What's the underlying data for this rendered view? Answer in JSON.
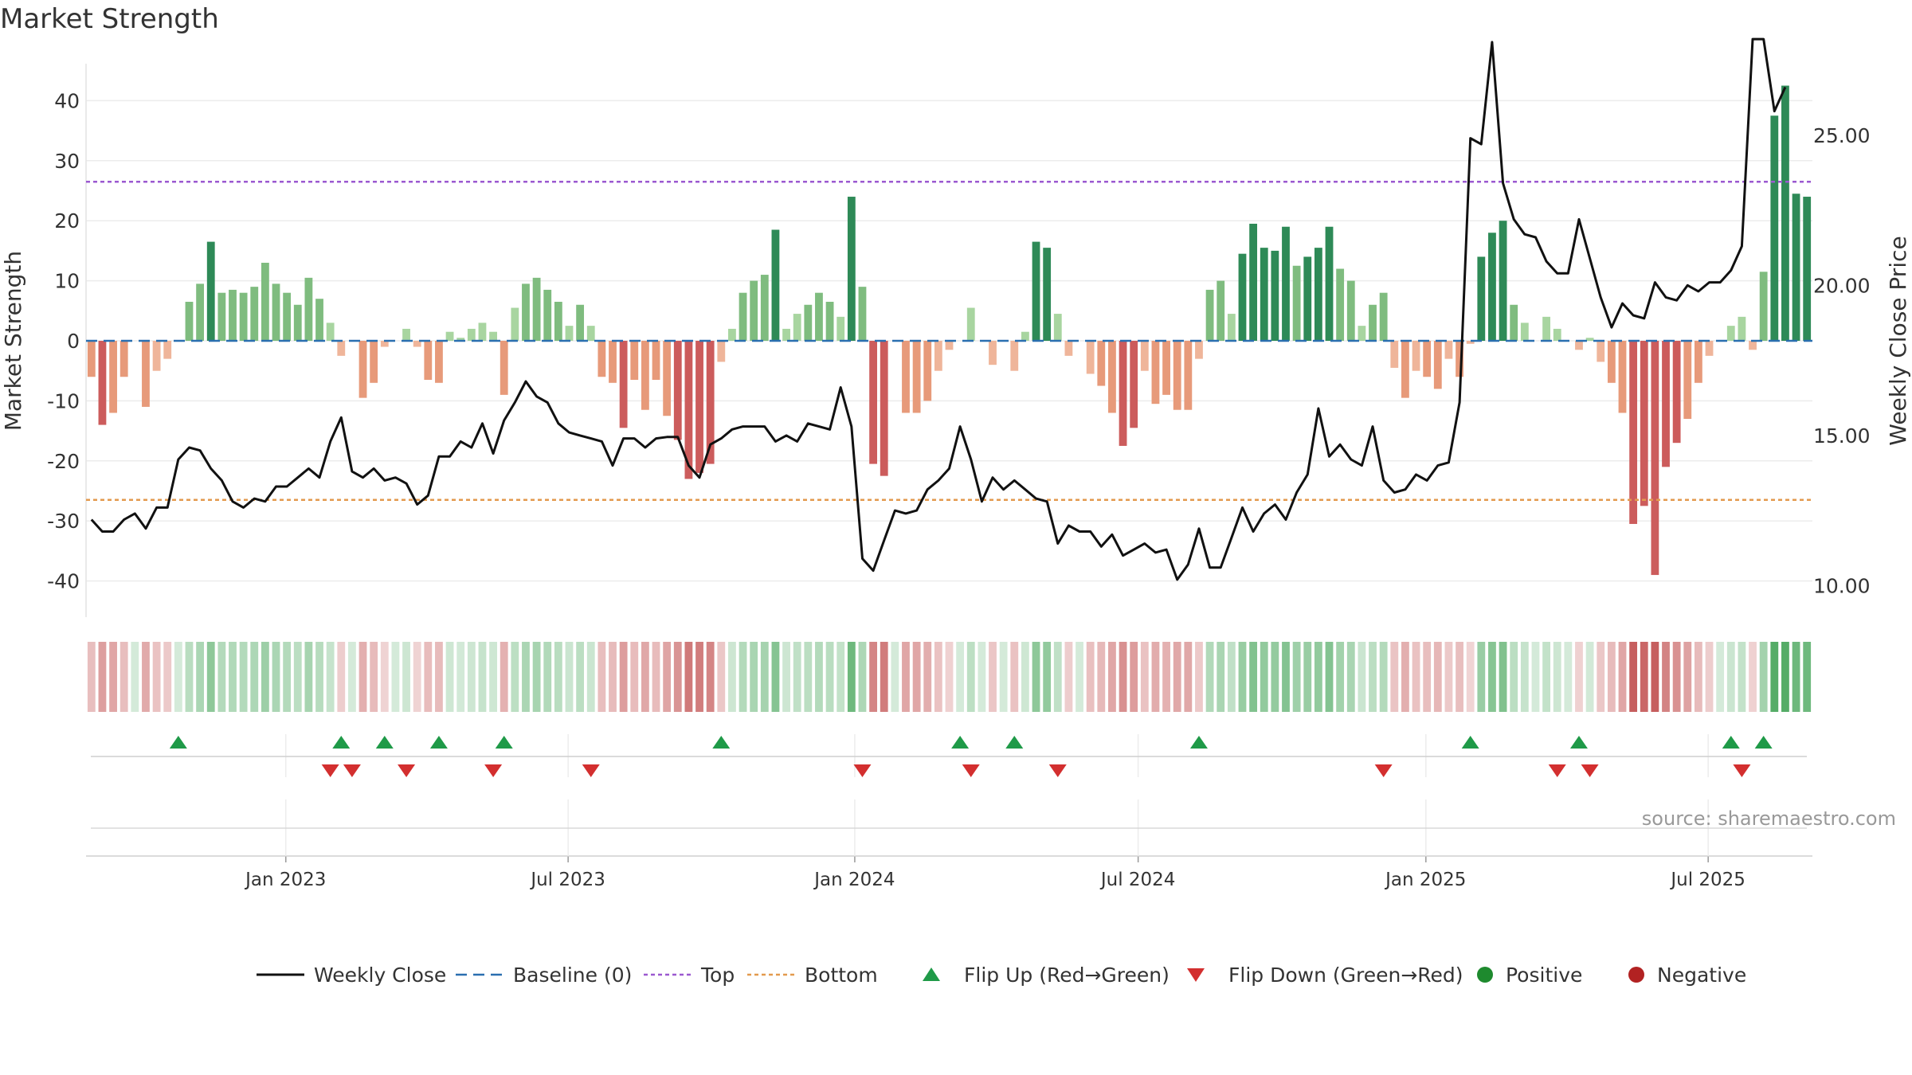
{
  "title": "Market Strength",
  "source": "source: sharemaestro.com",
  "colors": {
    "line": "#111111",
    "baseline": "#2a6fb0",
    "top": "#9b59d0",
    "bottom": "#e39a4e",
    "flip_up": "#1f9a48",
    "flip_down": "#d32f2f",
    "positive": "#1e8a2e",
    "negative": "#b22222"
  },
  "legend": [
    {
      "label": "Weekly Close",
      "kind": "line"
    },
    {
      "label": "Baseline (0)",
      "kind": "baseline"
    },
    {
      "label": "Top",
      "kind": "top"
    },
    {
      "label": "Bottom",
      "kind": "bottom"
    },
    {
      "label": "Flip Up (Red→Green)",
      "kind": "flip_up"
    },
    {
      "label": "Flip Down (Green→Red)",
      "kind": "flip_down"
    },
    {
      "label": "Positive",
      "kind": "positive"
    },
    {
      "label": "Negative",
      "kind": "negative"
    }
  ],
  "chart_data": {
    "type": "bar",
    "title": "Market Strength",
    "ylabel": "Market Strength",
    "y2label": "Weekly Close Price",
    "ylim": [
      -46,
      46
    ],
    "y_ticks": [
      40,
      30,
      20,
      10,
      0,
      -10,
      -20,
      -30,
      -40
    ],
    "y2lim": [
      8.95,
      27.7
    ],
    "y2_ticks": [
      "25.00",
      "20.00",
      "15.00",
      "10.00"
    ],
    "top_level": 26.5,
    "bottom_level": -26.5,
    "x_ticks": [
      {
        "label": "Jan 2023",
        "week": 17.9
      },
      {
        "label": "Jul 2023",
        "week": 43.9
      },
      {
        "label": "Jan 2024",
        "week": 70.3
      },
      {
        "label": "Jul 2024",
        "week": 96.4
      },
      {
        "label": "Jan 2025",
        "week": 122.9
      },
      {
        "label": "Jul 2025",
        "week": 148.9
      }
    ],
    "strength": [
      -6,
      -14,
      -12,
      -6,
      0,
      -11,
      -5,
      -3,
      0,
      6.5,
      9.5,
      16.5,
      8,
      8.5,
      8,
      9,
      13,
      9.5,
      8,
      6,
      10.5,
      7,
      3,
      -2.5,
      0,
      -9.5,
      -7,
      -1,
      0,
      2,
      -1,
      -6.5,
      -7,
      1.5,
      0.5,
      2,
      3,
      1.5,
      -9,
      5.5,
      9.5,
      10.5,
      8.5,
      6.5,
      2.5,
      6,
      2.5,
      -6,
      -7,
      -14.5,
      -6.5,
      -11.5,
      -6.5,
      -12.5,
      -16.5,
      -23,
      -22,
      -20.5,
      -3.5,
      2,
      8,
      10,
      11,
      18.5,
      2,
      4.5,
      6,
      8,
      6.5,
      4,
      24,
      9,
      -20.5,
      -22.5,
      0,
      -12,
      -12,
      -10,
      -5,
      -1.5,
      0,
      5.5,
      0,
      -4,
      0,
      -5,
      1.5,
      16.5,
      15.5,
      4.5,
      -2.5,
      0,
      -5.5,
      -7.5,
      -12,
      -17.5,
      -14.5,
      -5,
      -10.5,
      -9,
      -11.5,
      -11.5,
      -3,
      8.5,
      10,
      4.5,
      14.5,
      19.5,
      15.5,
      15,
      19,
      12.5,
      14,
      15.5,
      19,
      12,
      10,
      2.5,
      6,
      8,
      -4.5,
      -9.5,
      -5,
      -6,
      -8,
      -3,
      -6,
      -0.5,
      14,
      18,
      20,
      6,
      3,
      0,
      4,
      2,
      0,
      -1.5,
      0.5,
      -3.5,
      -7,
      -12,
      -30.5,
      -27.5,
      -39,
      -21,
      -17,
      -13,
      -7,
      -2.5,
      0,
      2.5,
      4,
      -1.5,
      11.5,
      37.5,
      42.5,
      24.5,
      24
    ],
    "close": [
      12.2,
      11.8,
      11.8,
      12.2,
      12.4,
      11.9,
      12.6,
      12.6,
      14.2,
      14.6,
      14.5,
      13.9,
      13.5,
      12.8,
      12.6,
      12.9,
      12.8,
      13.3,
      13.3,
      13.6,
      13.9,
      13.6,
      14.8,
      15.6,
      13.8,
      13.6,
      13.9,
      13.5,
      13.6,
      13.4,
      12.7,
      13.0,
      14.3,
      14.3,
      14.8,
      14.6,
      15.4,
      14.4,
      15.5,
      16.1,
      16.8,
      16.3,
      16.1,
      15.4,
      15.1,
      15.0,
      14.9,
      14.8,
      14.0,
      14.9,
      14.9,
      14.6,
      14.9,
      14.95,
      14.95,
      14.0,
      13.6,
      14.7,
      14.9,
      15.2,
      15.3,
      15.3,
      15.3,
      14.8,
      15.0,
      14.8,
      15.4,
      15.3,
      15.2,
      16.6,
      15.3,
      10.9,
      10.5,
      11.5,
      12.5,
      12.4,
      12.5,
      13.2,
      13.5,
      13.9,
      15.3,
      14.2,
      12.8,
      13.6,
      13.2,
      13.5,
      13.2,
      12.9,
      12.8,
      11.4,
      12.0,
      11.8,
      11.8,
      11.3,
      11.7,
      11.0,
      11.2,
      11.4,
      11.1,
      11.2,
      10.2,
      10.7,
      11.9,
      10.6,
      10.6,
      11.6,
      12.6,
      11.8,
      12.4,
      12.7,
      12.2,
      13.1,
      13.7,
      15.9,
      14.3,
      14.7,
      14.2,
      14.0,
      15.3,
      13.5,
      13.1,
      13.2,
      13.7,
      13.5,
      14.0,
      14.1,
      16.1,
      24.9,
      24.7,
      28.1,
      23.4,
      22.2,
      21.7,
      21.6,
      20.8,
      20.4,
      20.4,
      22.2,
      20.9,
      19.6,
      18.6,
      19.4,
      19.0,
      18.9,
      20.1,
      19.6,
      19.5,
      20.0,
      19.8,
      20.1,
      20.1,
      20.5,
      21.3,
      28.2,
      28.2,
      25.8,
      26.6
    ],
    "flip_up_weeks": [
      8,
      23,
      27,
      32,
      38,
      58,
      80,
      85,
      102,
      127,
      137,
      151,
      154
    ],
    "flip_down_weeks": [
      22,
      24,
      29,
      37,
      46,
      71,
      81,
      89,
      119,
      135,
      138,
      152
    ],
    "legend_position": "bottom"
  }
}
